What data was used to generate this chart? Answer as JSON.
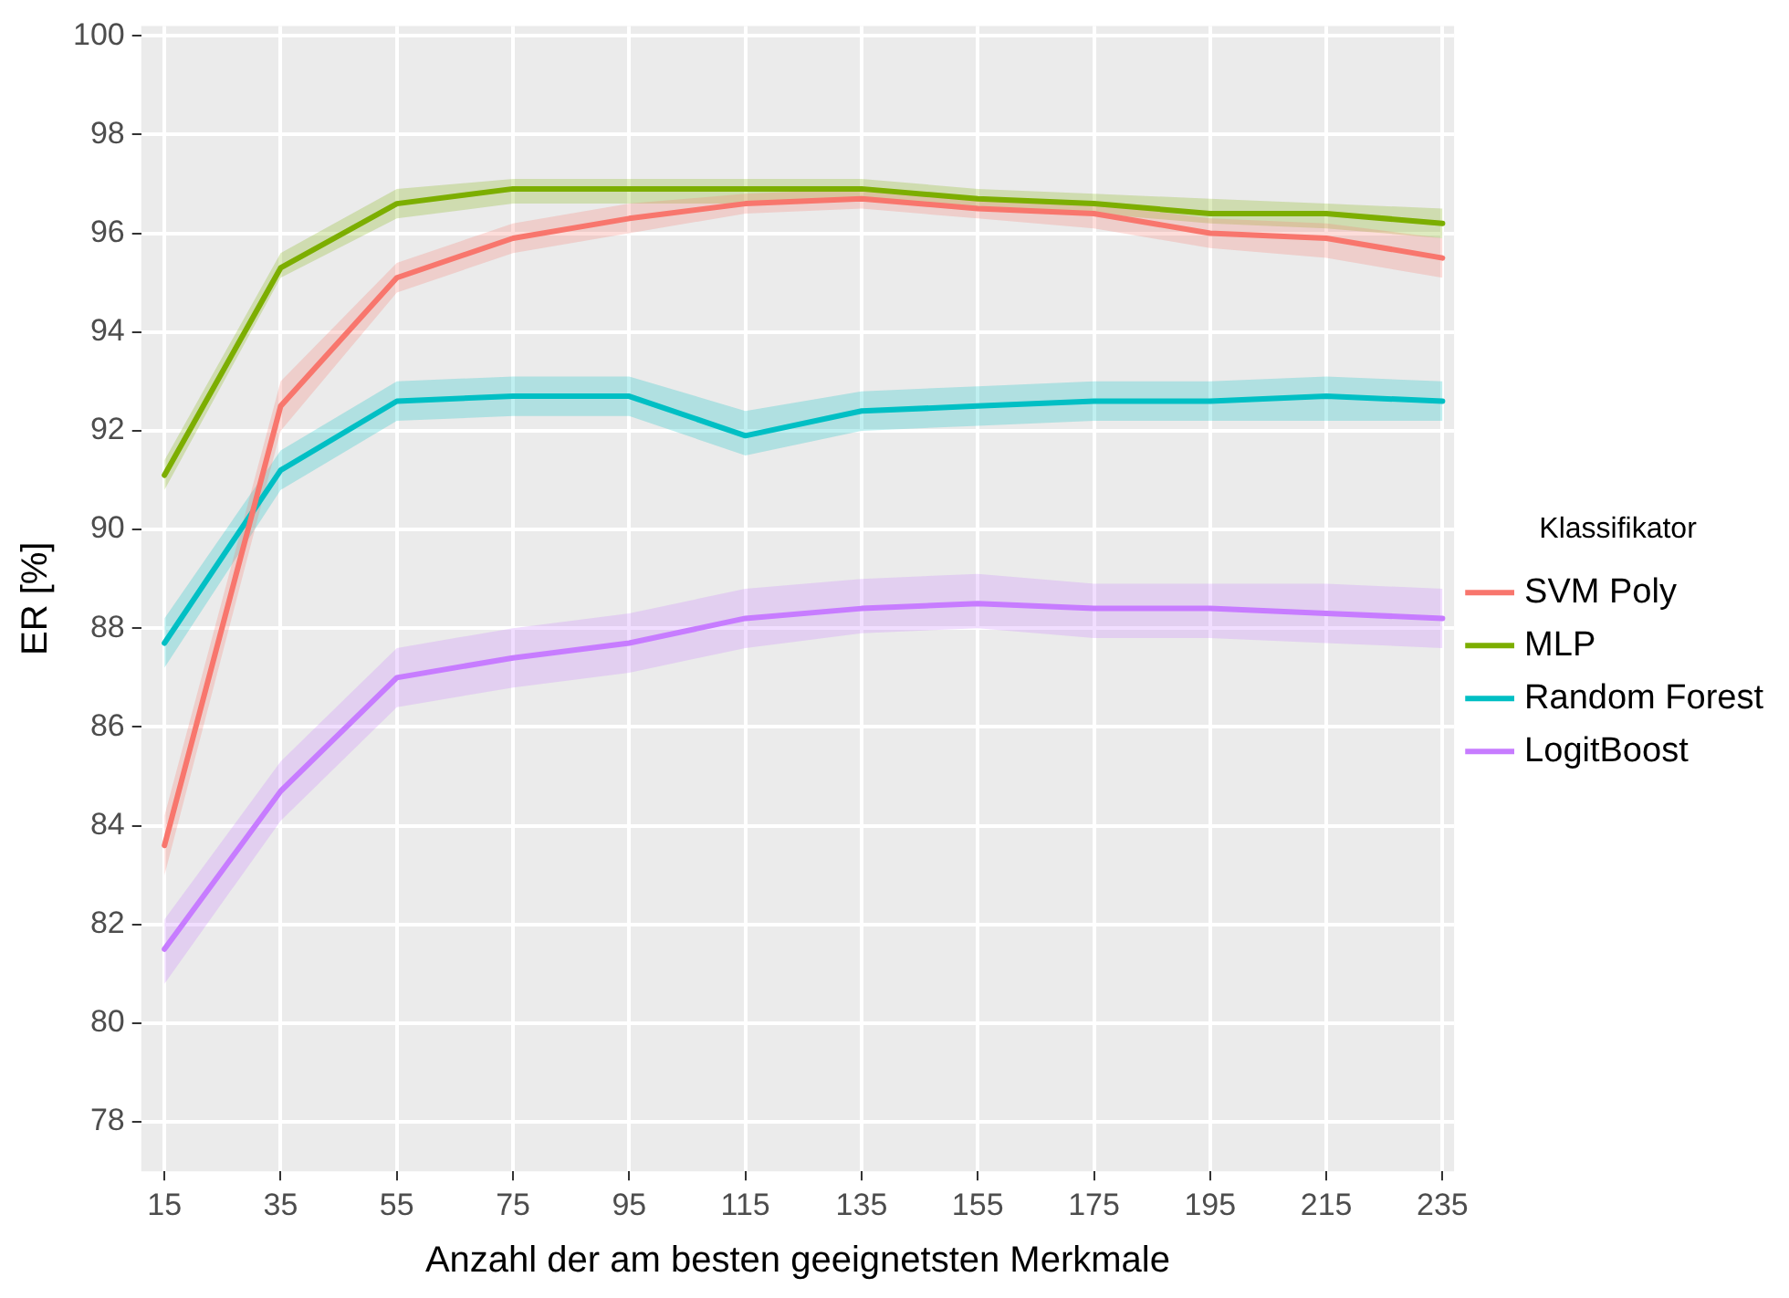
{
  "chart_data": {
    "type": "line",
    "xlabel": "Anzahl der am besten geeignetsten Merkmale",
    "ylabel": "ER [%]",
    "legend_title": "Klassifikator",
    "legend": "right",
    "grid": true,
    "line_style": "solid",
    "marker": "none",
    "x": [
      15,
      35,
      55,
      75,
      95,
      115,
      135,
      155,
      175,
      195,
      215,
      235
    ],
    "xlim": [
      11,
      237
    ],
    "xticks": [
      15,
      35,
      55,
      75,
      95,
      115,
      135,
      155,
      175,
      195,
      215,
      235
    ],
    "ylim": [
      77,
      100.2
    ],
    "yticks": [
      78,
      80,
      82,
      84,
      86,
      88,
      90,
      92,
      94,
      96,
      98,
      100
    ],
    "series": [
      {
        "name": "SVM Poly",
        "color": "#f8766d",
        "values": [
          83.6,
          92.5,
          95.1,
          95.9,
          96.3,
          96.6,
          96.7,
          96.5,
          96.4,
          96.0,
          95.9,
          95.5
        ],
        "lower": [
          83.0,
          92.0,
          94.8,
          95.6,
          96.0,
          96.4,
          96.5,
          96.3,
          96.1,
          95.7,
          95.5,
          95.1
        ],
        "upper": [
          84.2,
          93.0,
          95.4,
          96.2,
          96.6,
          96.8,
          96.9,
          96.7,
          96.6,
          96.3,
          96.2,
          95.9
        ]
      },
      {
        "name": "MLP",
        "color": "#7cae00",
        "values": [
          91.1,
          95.3,
          96.6,
          96.9,
          96.9,
          96.9,
          96.9,
          96.7,
          96.6,
          96.4,
          96.4,
          96.2
        ],
        "lower": [
          90.8,
          95.1,
          96.3,
          96.6,
          96.6,
          96.6,
          96.7,
          96.5,
          96.4,
          96.2,
          96.1,
          95.9
        ],
        "upper": [
          91.4,
          95.6,
          96.9,
          97.1,
          97.1,
          97.1,
          97.1,
          96.9,
          96.8,
          96.7,
          96.6,
          96.5
        ]
      },
      {
        "name": "Random Forest",
        "color": "#00bfc4",
        "values": [
          87.7,
          91.2,
          92.6,
          92.7,
          92.7,
          91.9,
          92.4,
          92.5,
          92.6,
          92.6,
          92.7,
          92.6
        ],
        "lower": [
          87.2,
          90.8,
          92.2,
          92.3,
          92.3,
          91.5,
          92.0,
          92.1,
          92.2,
          92.2,
          92.2,
          92.2
        ],
        "upper": [
          88.2,
          91.6,
          93.0,
          93.1,
          93.1,
          92.4,
          92.8,
          92.9,
          93.0,
          93.0,
          93.1,
          93.0
        ]
      },
      {
        "name": "LogitBoost",
        "color": "#c77cff",
        "values": [
          81.5,
          84.7,
          87.0,
          87.4,
          87.7,
          88.2,
          88.4,
          88.5,
          88.4,
          88.4,
          88.3,
          88.2
        ],
        "lower": [
          80.8,
          84.1,
          86.4,
          86.8,
          87.1,
          87.6,
          87.9,
          88.0,
          87.8,
          87.8,
          87.7,
          87.6
        ],
        "upper": [
          82.1,
          85.3,
          87.6,
          88.0,
          88.3,
          88.8,
          89.0,
          89.1,
          88.9,
          88.9,
          88.9,
          88.8
        ]
      }
    ]
  }
}
